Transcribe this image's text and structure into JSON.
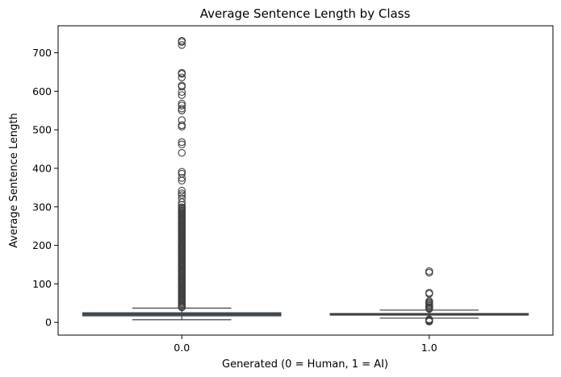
{
  "chart_data": {
    "type": "box",
    "title": "Average Sentence Length by Class",
    "xlabel": "Generated (0 = Human, 1 = AI)",
    "ylabel": "Average Sentence Length",
    "categories": [
      "0.0",
      "1.0"
    ],
    "ylim": [
      -33,
      770
    ],
    "yticks": [
      0,
      100,
      200,
      300,
      400,
      500,
      600,
      700
    ],
    "grid": false,
    "boxes": [
      {
        "category": "0.0",
        "whisker_low": 7,
        "q1": 17,
        "median": 21,
        "q3": 25,
        "whisker_high": 37,
        "color": "#3b6a8f",
        "outliers": [
          731,
          728,
          720,
          648,
          645,
          636,
          615,
          612,
          598,
          590,
          568,
          563,
          555,
          550,
          525,
          512,
          508,
          468,
          462,
          440,
          391,
          386,
          375,
          368,
          342,
          335,
          330,
          322,
          312,
          305,
          299,
          296,
          293,
          290,
          287,
          284,
          281,
          278,
          275,
          272,
          269,
          266,
          263,
          260,
          257,
          254,
          251,
          248,
          245,
          242,
          239,
          236,
          233,
          230,
          227,
          224,
          221,
          218,
          215,
          212,
          209,
          206,
          203,
          200,
          197,
          194,
          191,
          188,
          185,
          182,
          179,
          176,
          173,
          170,
          167,
          164,
          161,
          158,
          155,
          152,
          149,
          146,
          143,
          140,
          137,
          134,
          131,
          128,
          125,
          122,
          119,
          116,
          113,
          110,
          107,
          104,
          101,
          98,
          95,
          92,
          89,
          86,
          83,
          80,
          77,
          74,
          71,
          68,
          65,
          62,
          59,
          56,
          53,
          50,
          47,
          44,
          41,
          39
        ]
      },
      {
        "category": "1.0",
        "whisker_low": 11,
        "q1": 19,
        "median": 21,
        "q3": 23,
        "whisker_high": 32,
        "color": "#c47a3a",
        "outliers": [
          133,
          129,
          77,
          74,
          55,
          52,
          49,
          46,
          43,
          40,
          37,
          35,
          8,
          6,
          4,
          2
        ]
      }
    ]
  }
}
